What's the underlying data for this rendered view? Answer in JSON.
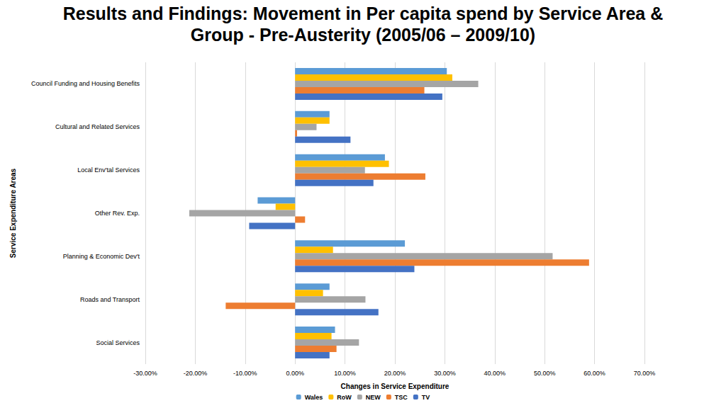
{
  "chart_data": {
    "type": "bar",
    "orientation": "horizontal",
    "title": "Results and Findings: Movement in Per capita spend by Service Area & Group - Pre-Austerity (2005/06 – 2009/10)",
    "x_label": "Changes in Service Expenditure",
    "y_label": "Service Expenditure Areas",
    "categories": [
      "Council Funding and Housing Benefits",
      "Cultural and Related Services",
      "Local Env'tal Services",
      "Other Rev. Exp.",
      "Planning & Economic Dev't",
      "Roads and Transport",
      "Social Services"
    ],
    "series": [
      {
        "name": "Wales",
        "color": "#5b9bd5",
        "values": [
          30.4,
          6.9,
          18.0,
          -7.5,
          22.0,
          6.9,
          8.0
        ]
      },
      {
        "name": "RoW",
        "color": "#ffc000",
        "values": [
          31.5,
          6.9,
          18.8,
          -3.9,
          7.6,
          5.6,
          7.3
        ]
      },
      {
        "name": "NEW",
        "color": "#a5a5a5",
        "values": [
          36.7,
          4.3,
          14.0,
          -21.2,
          51.6,
          14.1,
          12.8
        ]
      },
      {
        "name": "TSC",
        "color": "#ed7d31",
        "values": [
          25.9,
          0.4,
          26.1,
          2.0,
          58.9,
          -13.9,
          8.3
        ]
      },
      {
        "name": "TV",
        "color": "#4472c4",
        "values": [
          29.5,
          11.1,
          15.7,
          -9.2,
          23.9,
          16.7,
          6.9
        ]
      }
    ],
    "xlim": [
      -30,
      70
    ],
    "xticks": [
      {
        "value": -30,
        "label": "-30.00%"
      },
      {
        "value": -20,
        "label": "-20.00%"
      },
      {
        "value": -10,
        "label": "-10.00%"
      },
      {
        "value": 0,
        "label": "0.00%"
      },
      {
        "value": 10,
        "label": "10.00%"
      },
      {
        "value": 20,
        "label": "20.00%"
      },
      {
        "value": 30,
        "label": "30.00%"
      },
      {
        "value": 40,
        "label": "40.00%"
      },
      {
        "value": 50,
        "label": "50.00%"
      },
      {
        "value": 60,
        "label": "60.00%"
      },
      {
        "value": 70,
        "label": "70.00%"
      }
    ],
    "grid": true,
    "legend": "bottom"
  }
}
